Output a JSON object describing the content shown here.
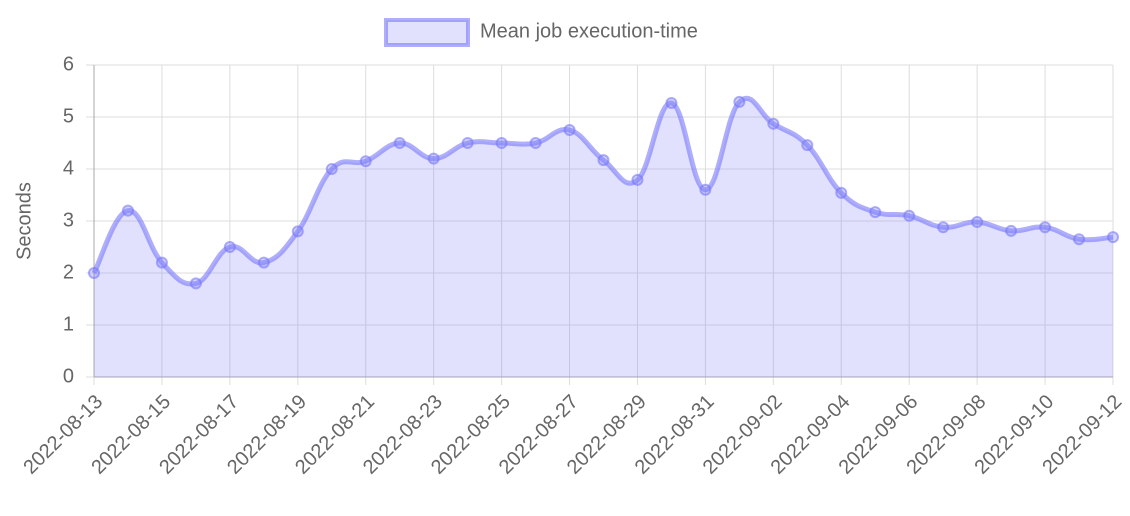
{
  "chart_data": {
    "type": "line",
    "y_label": "Seconds",
    "categories": [
      "2022-08-13",
      null,
      "2022-08-15",
      null,
      "2022-08-17",
      null,
      "2022-08-19",
      null,
      "2022-08-21",
      null,
      "2022-08-23",
      null,
      "2022-08-25",
      null,
      "2022-08-27",
      null,
      "2022-08-29",
      null,
      "2022-08-31",
      null,
      "2022-09-02",
      null,
      "2022-09-04",
      null,
      "2022-09-06",
      null,
      "2022-09-08",
      null,
      "2022-09-10",
      null,
      "2022-09-12"
    ],
    "series": [
      {
        "name": "Mean job execution-time",
        "color": "#7878fa",
        "values": [
          2.0,
          3.2,
          2.2,
          1.8,
          2.5,
          2.2,
          2.8,
          4.0,
          4.15,
          4.5,
          4.2,
          4.5,
          4.5,
          4.5,
          4.75,
          4.17,
          3.79,
          5.27,
          3.6,
          5.29,
          4.87,
          4.46,
          3.54,
          3.17,
          3.1,
          2.88,
          2.98,
          2.81,
          2.88,
          2.65,
          2.69
        ]
      }
    ],
    "ylim": [
      0,
      6
    ],
    "yticks": [
      0,
      1,
      2,
      3,
      4,
      5,
      6
    ],
    "grid": true,
    "fill": true,
    "legend": "top"
  }
}
